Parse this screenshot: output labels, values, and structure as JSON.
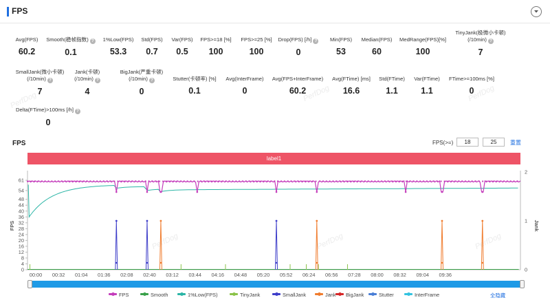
{
  "header": {
    "title": "FPS"
  },
  "metrics_row1": [
    {
      "label": "Avg(FPS)",
      "value": "60.2"
    },
    {
      "label": "Smooth(稳帧指数)",
      "value": "0.1",
      "help": true
    },
    {
      "label": "1%Low(FPS)",
      "value": "53.3"
    },
    {
      "label": "Std(FPS)",
      "value": "0.7"
    },
    {
      "label": "Var(FPS)",
      "value": "0.5"
    },
    {
      "label": "FPS>=18 [%]",
      "value": "100"
    },
    {
      "label": "FPS>=25 [%]",
      "value": "100"
    },
    {
      "label": "Drop(FPS) [/h]",
      "value": "0",
      "help": true
    },
    {
      "label": "Min(FPS)",
      "value": "53"
    },
    {
      "label": "Median(FPS)",
      "value": "60"
    },
    {
      "label": "MedRange(FPS)[%]",
      "value": "100"
    },
    {
      "label": "TinyJank(极微小卡顿)",
      "label2": "(/10min)",
      "value": "7",
      "help": true
    }
  ],
  "metrics_row2": [
    {
      "label": "SmallJank(微小卡顿)",
      "label2": "(/10min)",
      "value": "7",
      "help": true
    },
    {
      "label": "Jank(卡顿)",
      "label2": "(/10min)",
      "value": "4",
      "help": true
    },
    {
      "label": "BigJank(严重卡顿)",
      "label2": "(/10min)",
      "value": "0",
      "help": true
    },
    {
      "label": "Stutter(卡顿率) [%]",
      "value": "0.1"
    },
    {
      "label": "Avg(InterFrame)",
      "value": "0"
    },
    {
      "label": "Avg(FPS+InterFrame)",
      "value": "60.2"
    },
    {
      "label": "Avg(FTime) [ms]",
      "value": "16.6"
    },
    {
      "label": "Std(FTime)",
      "value": "1.1"
    },
    {
      "label": "Var(FTime)",
      "value": "1.1"
    },
    {
      "label": "FTime>=100ms [%]",
      "value": "0"
    }
  ],
  "metrics_row3": [
    {
      "label": "Delta(FTime)>100ms [/h]",
      "value": "0",
      "help": true
    }
  ],
  "watermark": "PerfDog",
  "chart_section": {
    "title": "FPS",
    "filter_label": "FPS(>=)",
    "filter_min": "18",
    "filter_max": "25",
    "reset_label": "重置",
    "label_bar": "label1",
    "hide_all": "全隐藏"
  },
  "chart_data": {
    "type": "line",
    "xlabel_ticks": [
      "00:00",
      "00:32",
      "01:04",
      "01:36",
      "02:08",
      "02:40",
      "03:12",
      "03:44",
      "04:16",
      "04:48",
      "05:20",
      "05:52",
      "06:24",
      "06:56",
      "07:28",
      "08:00",
      "08:32",
      "09:04",
      "09:36"
    ],
    "x_range_seconds": [
      0,
      610
    ],
    "y_left": {
      "label": "FPS",
      "ticks": [
        0,
        4,
        8,
        12,
        16,
        20,
        24,
        28,
        32,
        36,
        40,
        44,
        48,
        54,
        61
      ],
      "range": [
        0,
        61
      ]
    },
    "y_right": {
      "label": "Jank",
      "ticks": [
        0,
        1,
        2
      ],
      "range": [
        0,
        2
      ]
    },
    "series": [
      {
        "name": "FPS",
        "color": "#c43dbb",
        "baseline": 60.2,
        "dips_at_seconds": [
          110,
          148,
          165,
          210,
          308,
          358,
          468,
          513,
          563
        ],
        "dip_value": 53
      },
      {
        "name": "Smooth",
        "color": "#3aa14a"
      },
      {
        "name": "1%Low(FPS)",
        "color": "#2bb5a6",
        "start": 36,
        "plateau": 58,
        "steps": [
          {
            "t": 110,
            "v": 55.5
          },
          {
            "t": 148,
            "v": 54
          },
          {
            "t": 165,
            "v": 53.3
          }
        ]
      },
      {
        "name": "TinyJank",
        "color": "#8bc34a"
      },
      {
        "name": "SmallJank",
        "color": "#3d3dc9",
        "spikes_at_seconds": [
          110,
          148,
          308
        ],
        "spike_value": 1
      },
      {
        "name": "Jank",
        "color": "#f07c2e",
        "spikes_at_seconds": [
          165,
          358,
          513,
          563
        ],
        "spike_value": 1
      },
      {
        "name": "BigJank",
        "color": "#d62728"
      },
      {
        "name": "Stutter",
        "color": "#4a7fd6"
      },
      {
        "name": "InterFrame",
        "color": "#33c3e0"
      }
    ],
    "legend_position": "bottom"
  }
}
